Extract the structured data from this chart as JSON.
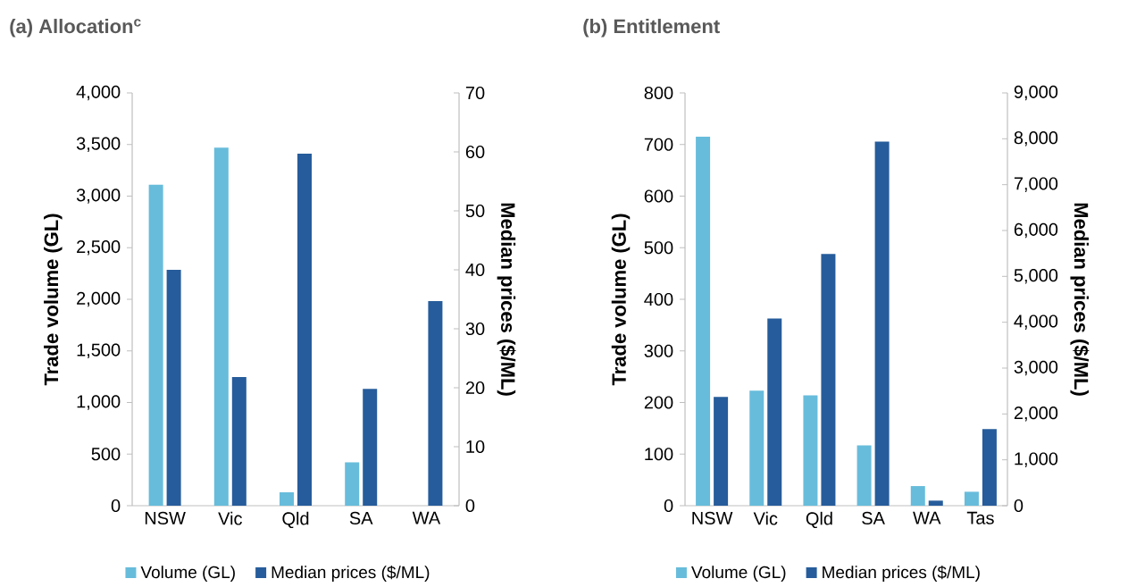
{
  "chart_data": [
    {
      "type": "bar",
      "title": "(a) Allocation$^{c}$",
      "ylabel": "Trade volume (GL)",
      "y2label": "Median prices ($/ML)",
      "categories": [
        "NSW",
        "Vic",
        "Qld",
        "SA",
        "WA"
      ],
      "series": [
        {
          "name": "Volume (GL)",
          "color": "#67bcdb",
          "values": [
            3110,
            3470,
            130,
            420,
            0
          ]
        },
        {
          "name": "Median prices ($/ML)",
          "color": "#265c9b",
          "axis": "y2",
          "values": [
            40,
            21.8,
            59.7,
            19.8,
            34.7
          ]
        }
      ],
      "ylim": [
        0,
        4000
      ],
      "yticks": [
        0,
        500,
        {
          "value": 1000,
          "label": "1,000"
        },
        {
          "value": 1500,
          "label": "1,500"
        },
        {
          "value": 2000,
          "label": "2,000"
        },
        {
          "value": 2500,
          "label": "2,500"
        },
        {
          "value": 3000,
          "label": "3,000"
        },
        {
          "value": 3500,
          "label": "3,500"
        },
        {
          "value": 4000,
          "label": "4,000"
        }
      ],
      "y2lim": [
        0,
        70
      ],
      "y2ticks": [
        0,
        10,
        20,
        30,
        40,
        50,
        60,
        70
      ],
      "legend": "bottom"
    },
    {
      "type": "bar",
      "title": "(b) Entitlement",
      "ylabel": "Trade volume (GL)",
      "y2label": "Median prices ($/ML)",
      "categories": [
        "NSW",
        "Vic",
        "Qld",
        "SA",
        "WA",
        "Tas"
      ],
      "series": [
        {
          "name": "Volume (GL)",
          "color": "#67bcdb",
          "values": [
            715,
            223,
            214,
            117,
            38,
            27
          ]
        },
        {
          "name": "Median prices ($/ML)",
          "color": "#265c9b",
          "axis": "y2",
          "values": [
            2370,
            4080,
            5490,
            7940,
            110,
            1670
          ]
        }
      ],
      "ylim": [
        0,
        800
      ],
      "yticks": [
        0,
        100,
        200,
        300,
        400,
        500,
        600,
        700,
        800
      ],
      "y2lim": [
        0,
        9000
      ],
      "y2ticks": [
        0,
        {
          "value": 1000,
          "label": "1,000"
        },
        {
          "value": 2000,
          "label": "2,000"
        },
        {
          "value": 3000,
          "label": "3,000"
        },
        {
          "value": 4000,
          "label": "4,000"
        },
        {
          "value": 5000,
          "label": "5,000"
        },
        {
          "value": 6000,
          "label": "6,000"
        },
        {
          "value": 7000,
          "label": "7,000"
        },
        {
          "value": 8000,
          "label": "8,000"
        },
        {
          "value": 9000,
          "label": "9,000"
        }
      ],
      "legend": "bottom"
    }
  ]
}
